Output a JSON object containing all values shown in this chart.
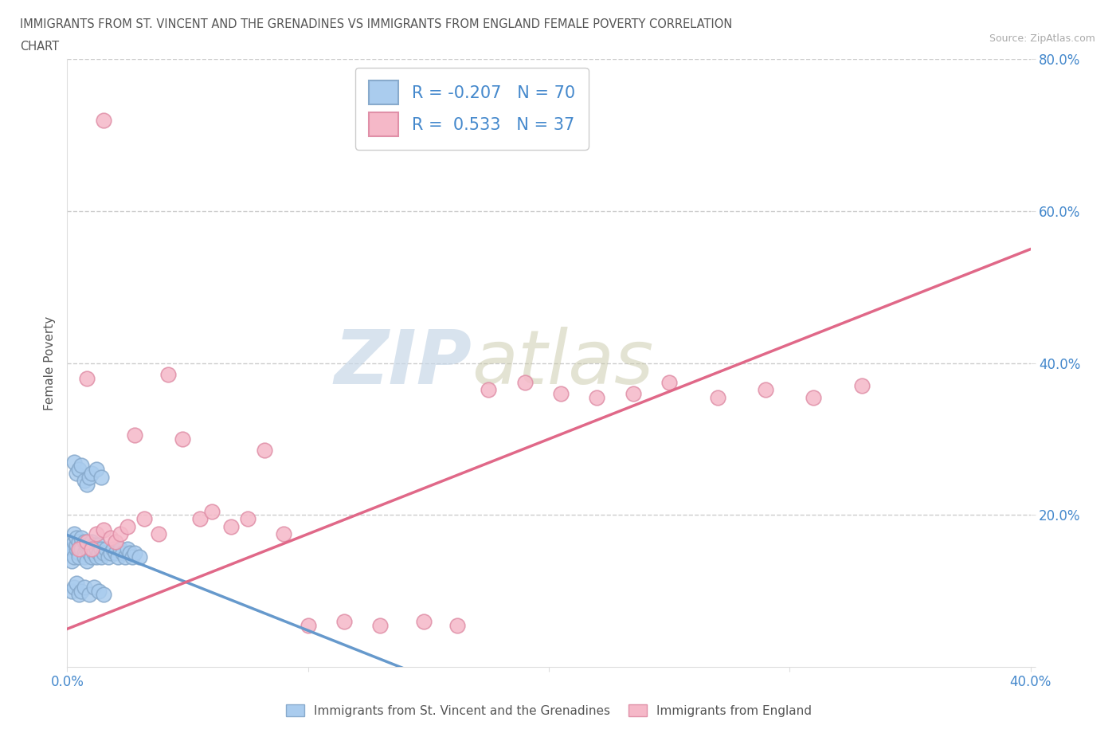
{
  "title_line1": "IMMIGRANTS FROM ST. VINCENT AND THE GRENADINES VS IMMIGRANTS FROM ENGLAND FEMALE POVERTY CORRELATION",
  "title_line2": "CHART",
  "source": "Source: ZipAtlas.com",
  "ylabel": "Female Poverty",
  "xlim": [
    0.0,
    0.4
  ],
  "ylim": [
    0.0,
    0.8
  ],
  "xticks": [
    0.0,
    0.1,
    0.2,
    0.3,
    0.4
  ],
  "yticks": [
    0.0,
    0.2,
    0.4,
    0.6,
    0.8
  ],
  "xtick_labels": [
    "0.0%",
    "",
    "",
    "",
    "40.0%"
  ],
  "ytick_labels": [
    "",
    "20.0%",
    "40.0%",
    "60.0%",
    "80.0%"
  ],
  "blue_color": "#aaccee",
  "blue_edge": "#88aacc",
  "pink_color": "#f5b8c8",
  "pink_edge": "#e090a8",
  "blue_R": -0.207,
  "blue_N": 70,
  "pink_R": 0.533,
  "pink_N": 37,
  "trend_blue_color": "#6699cc",
  "trend_pink_color": "#e06888",
  "title_color": "#555555",
  "axis_label_color": "#555555",
  "tick_color": "#4488cc",
  "grid_color": "#cccccc",
  "watermark_zip": "ZIP",
  "watermark_atlas": "atlas",
  "legend_label_blue": "Immigrants from St. Vincent and the Grenadines",
  "legend_label_pink": "Immigrants from England",
  "blue_scatter_x": [
    0.001,
    0.002,
    0.002,
    0.003,
    0.003,
    0.003,
    0.004,
    0.004,
    0.004,
    0.005,
    0.005,
    0.005,
    0.005,
    0.006,
    0.006,
    0.006,
    0.007,
    0.007,
    0.007,
    0.008,
    0.008,
    0.008,
    0.009,
    0.009,
    0.01,
    0.01,
    0.01,
    0.011,
    0.011,
    0.012,
    0.012,
    0.013,
    0.013,
    0.014,
    0.014,
    0.015,
    0.016,
    0.017,
    0.018,
    0.019,
    0.02,
    0.021,
    0.022,
    0.023,
    0.024,
    0.025,
    0.026,
    0.027,
    0.028,
    0.03,
    0.003,
    0.004,
    0.005,
    0.006,
    0.007,
    0.008,
    0.009,
    0.01,
    0.012,
    0.014,
    0.002,
    0.003,
    0.004,
    0.005,
    0.006,
    0.007,
    0.009,
    0.011,
    0.013,
    0.015
  ],
  "blue_scatter_y": [
    0.15,
    0.155,
    0.14,
    0.165,
    0.145,
    0.175,
    0.155,
    0.16,
    0.17,
    0.15,
    0.155,
    0.165,
    0.145,
    0.16,
    0.17,
    0.155,
    0.15,
    0.145,
    0.165,
    0.155,
    0.16,
    0.14,
    0.155,
    0.15,
    0.145,
    0.165,
    0.155,
    0.16,
    0.15,
    0.145,
    0.155,
    0.16,
    0.15,
    0.145,
    0.155,
    0.15,
    0.155,
    0.145,
    0.15,
    0.155,
    0.15,
    0.145,
    0.155,
    0.15,
    0.145,
    0.155,
    0.15,
    0.145,
    0.15,
    0.145,
    0.27,
    0.255,
    0.26,
    0.265,
    0.245,
    0.24,
    0.25,
    0.255,
    0.26,
    0.25,
    0.1,
    0.105,
    0.11,
    0.095,
    0.1,
    0.105,
    0.095,
    0.105,
    0.1,
    0.095
  ],
  "pink_scatter_x": [
    0.005,
    0.008,
    0.01,
    0.012,
    0.015,
    0.018,
    0.02,
    0.022,
    0.025,
    0.028,
    0.032,
    0.038,
    0.042,
    0.048,
    0.055,
    0.06,
    0.068,
    0.075,
    0.082,
    0.09,
    0.1,
    0.115,
    0.13,
    0.148,
    0.162,
    0.175,
    0.19,
    0.205,
    0.22,
    0.235,
    0.25,
    0.27,
    0.29,
    0.31,
    0.33,
    0.008,
    0.015
  ],
  "pink_scatter_y": [
    0.155,
    0.165,
    0.155,
    0.175,
    0.18,
    0.17,
    0.165,
    0.175,
    0.185,
    0.305,
    0.195,
    0.175,
    0.385,
    0.3,
    0.195,
    0.205,
    0.185,
    0.195,
    0.285,
    0.175,
    0.055,
    0.06,
    0.055,
    0.06,
    0.055,
    0.365,
    0.375,
    0.36,
    0.355,
    0.36,
    0.375,
    0.355,
    0.365,
    0.355,
    0.37,
    0.38,
    0.72
  ]
}
